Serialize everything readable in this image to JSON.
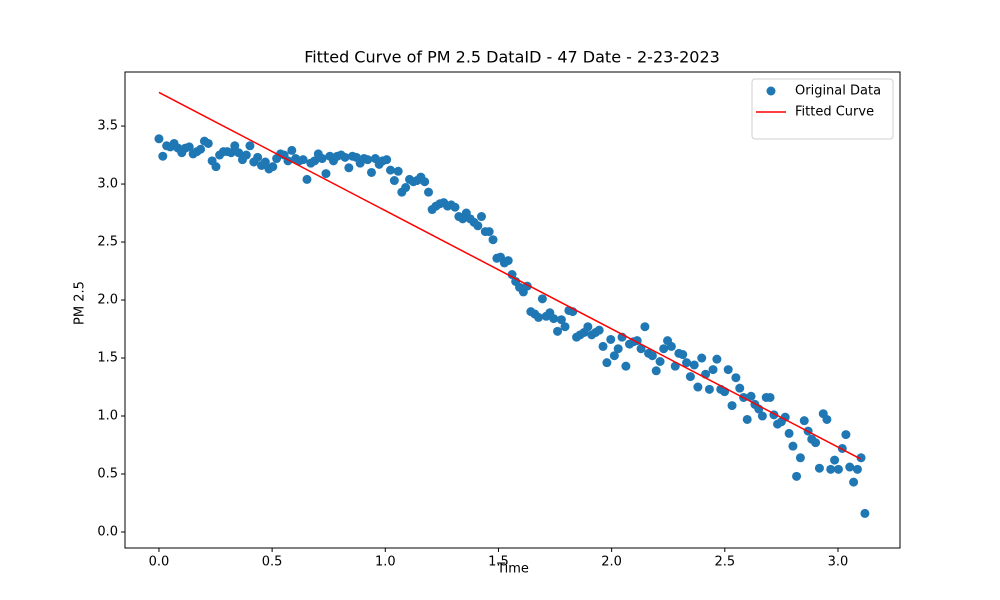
{
  "chart_data": {
    "type": "scatter",
    "title": "Fitted Curve of PM 2.5 DataID - 47 Date - 2-23-2023",
    "xlabel": "Time",
    "ylabel": "PM 2.5",
    "xlim": [
      -0.15,
      3.274
    ],
    "ylim": [
      -0.138,
      3.966
    ],
    "xticks": [
      {
        "value": 0,
        "label": "0.0"
      },
      {
        "value": 0.5,
        "label": "0.5"
      },
      {
        "value": 1,
        "label": "1.0"
      },
      {
        "value": 1.5,
        "label": "1.5"
      },
      {
        "value": 2,
        "label": "2.0"
      },
      {
        "value": 2.5,
        "label": "2.5"
      },
      {
        "value": 3,
        "label": "3.0"
      }
    ],
    "yticks": [
      {
        "value": 0,
        "label": "0.0"
      },
      {
        "value": 0.5,
        "label": "0.5"
      },
      {
        "value": 1,
        "label": "1.0"
      },
      {
        "value": 1.5,
        "label": "1.5"
      },
      {
        "value": 2,
        "label": "2.0"
      },
      {
        "value": 2.5,
        "label": "2.5"
      },
      {
        "value": 3,
        "label": "3.0"
      },
      {
        "value": 3.5,
        "label": "3.5"
      }
    ],
    "legend": "upper right",
    "series": [
      {
        "name": "Original Data",
        "type": "scatter",
        "color": "#1f77b4",
        "x": [
          0,
          0.017,
          0.034,
          0.05,
          0.067,
          0.084,
          0.101,
          0.117,
          0.134,
          0.151,
          0.168,
          0.184,
          0.201,
          0.218,
          0.235,
          0.252,
          0.268,
          0.285,
          0.302,
          0.319,
          0.335,
          0.352,
          0.369,
          0.386,
          0.402,
          0.419,
          0.436,
          0.453,
          0.47,
          0.486,
          0.503,
          0.52,
          0.537,
          0.553,
          0.57,
          0.587,
          0.604,
          0.62,
          0.637,
          0.654,
          0.671,
          0.688,
          0.704,
          0.721,
          0.738,
          0.755,
          0.771,
          0.788,
          0.805,
          0.822,
          0.839,
          0.855,
          0.872,
          0.889,
          0.906,
          0.922,
          0.939,
          0.956,
          0.973,
          0.989,
          1.006,
          1.023,
          1.04,
          1.057,
          1.073,
          1.09,
          1.107,
          1.124,
          1.14,
          1.157,
          1.174,
          1.191,
          1.207,
          1.224,
          1.241,
          1.258,
          1.275,
          1.291,
          1.308,
          1.325,
          1.342,
          1.358,
          1.375,
          1.392,
          1.409,
          1.425,
          1.442,
          1.459,
          1.476,
          1.493,
          1.509,
          1.526,
          1.543,
          1.56,
          1.576,
          1.593,
          1.61,
          1.627,
          1.643,
          1.66,
          1.677,
          1.694,
          1.711,
          1.727,
          1.744,
          1.761,
          1.778,
          1.794,
          1.811,
          1.828,
          1.845,
          1.861,
          1.878,
          1.895,
          1.912,
          1.929,
          1.945,
          1.962,
          1.979,
          1.996,
          2.012,
          2.029,
          2.046,
          2.063,
          2.079,
          2.096,
          2.113,
          2.13,
          2.147,
          2.163,
          2.18,
          2.197,
          2.214,
          2.23,
          2.247,
          2.264,
          2.281,
          2.297,
          2.314,
          2.331,
          2.348,
          2.365,
          2.381,
          2.398,
          2.415,
          2.432,
          2.448,
          2.465,
          2.482,
          2.499,
          2.515,
          2.532,
          2.549,
          2.566,
          2.583,
          2.599,
          2.616,
          2.633,
          2.65,
          2.666,
          2.683,
          2.7,
          2.717,
          2.733,
          2.75,
          2.767,
          2.784,
          2.801,
          2.817,
          2.834,
          2.851,
          2.868,
          2.884,
          2.901,
          2.918,
          2.935,
          2.951,
          2.968,
          2.985,
          3.002,
          3.019,
          3.035,
          3.052,
          3.069,
          3.086,
          3.102,
          3.119
        ],
        "values": [
          3.39,
          3.24,
          3.33,
          3.32,
          3.35,
          3.31,
          3.27,
          3.31,
          3.32,
          3.26,
          3.28,
          3.3,
          3.37,
          3.35,
          3.2,
          3.15,
          3.25,
          3.28,
          3.28,
          3.27,
          3.33,
          3.27,
          3.21,
          3.25,
          3.33,
          3.19,
          3.23,
          3.16,
          3.19,
          3.13,
          3.15,
          3.22,
          3.26,
          3.25,
          3.2,
          3.29,
          3.22,
          3.2,
          3.21,
          3.04,
          3.18,
          3.2,
          3.26,
          3.22,
          3.09,
          3.24,
          3.2,
          3.24,
          3.25,
          3.23,
          3.14,
          3.24,
          3.23,
          3.18,
          3.22,
          3.21,
          3.1,
          3.22,
          3.17,
          3.2,
          3.21,
          3.12,
          3.03,
          3.11,
          2.93,
          2.97,
          3.04,
          3.02,
          3.03,
          3.06,
          3.02,
          2.93,
          2.78,
          2.81,
          2.83,
          2.84,
          2.81,
          2.82,
          2.8,
          2.72,
          2.7,
          2.75,
          2.7,
          2.67,
          2.64,
          2.72,
          2.59,
          2.59,
          2.52,
          2.36,
          2.37,
          2.32,
          2.34,
          2.22,
          2.16,
          2.11,
          2.07,
          2.12,
          1.9,
          1.88,
          1.85,
          2.01,
          1.86,
          1.89,
          1.84,
          1.73,
          1.83,
          1.77,
          1.91,
          1.9,
          1.68,
          1.7,
          1.72,
          1.77,
          1.7,
          1.72,
          1.74,
          1.6,
          1.46,
          1.66,
          1.52,
          1.58,
          1.68,
          1.43,
          1.62,
          1.64,
          1.65,
          1.58,
          1.77,
          1.54,
          1.52,
          1.39,
          1.47,
          1.58,
          1.65,
          1.6,
          1.43,
          1.54,
          1.53,
          1.46,
          1.34,
          1.44,
          1.25,
          1.5,
          1.36,
          1.23,
          1.4,
          1.49,
          1.23,
          1.21,
          1.4,
          1.09,
          1.33,
          1.24,
          1.16,
          0.97,
          1.17,
          1.1,
          1.06,
          1.0,
          1.16,
          1.16,
          1.01,
          0.93,
          0.95,
          0.99,
          0.85,
          0.74,
          0.48,
          0.64,
          0.96,
          0.87,
          0.8,
          0.77,
          0.55,
          1.02,
          0.97,
          0.54,
          0.62,
          0.54,
          0.72,
          0.84,
          0.56,
          0.43,
          0.54,
          0.64,
          0.16
        ]
      },
      {
        "name": "Fitted Curve",
        "type": "line",
        "color": "#ff0000",
        "x": [
          0,
          3.1
        ],
        "values": [
          3.79,
          0.63
        ]
      }
    ]
  }
}
